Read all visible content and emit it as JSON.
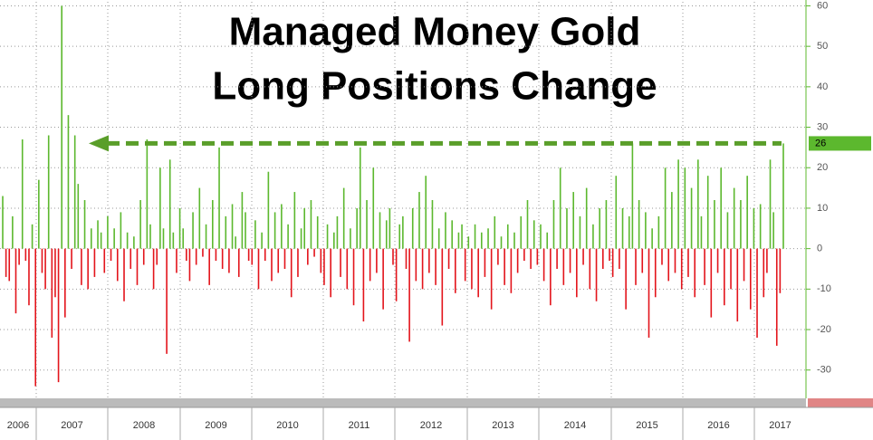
{
  "chart_data": {
    "type": "bar",
    "title_lines": [
      "Managed Money Gold",
      "Long Positions Change"
    ],
    "year_labels": [
      "2006",
      "2007",
      "2008",
      "2009",
      "2010",
      "2011",
      "2012",
      "2013",
      "2014",
      "2015",
      "2016",
      "2017"
    ],
    "values": [
      13,
      -7,
      -8,
      8,
      -16,
      -4,
      27,
      -3,
      -14,
      6,
      -34,
      17,
      -6,
      -10,
      28,
      -22,
      -12,
      -33,
      60,
      -17,
      33,
      -5,
      28,
      16,
      -9,
      12,
      -10,
      5,
      -7,
      7,
      4,
      -6,
      8,
      -3,
      5,
      -8,
      9,
      -13,
      4,
      -5,
      3,
      -9,
      12,
      -4,
      27,
      6,
      -10,
      -4,
      20,
      5,
      -26,
      22,
      4,
      -6,
      10,
      5,
      -3,
      -8,
      9,
      -4,
      15,
      -2,
      6,
      -9,
      12,
      -3,
      25,
      -5,
      8,
      -6,
      11,
      3,
      -7,
      14,
      9,
      -3,
      -4,
      7,
      -10,
      4,
      -3,
      19,
      -8,
      9,
      -6,
      11,
      -5,
      6,
      -12,
      14,
      -7,
      5,
      10,
      -4,
      12,
      -2,
      8,
      -6,
      -9,
      6,
      -12,
      4,
      8,
      -7,
      15,
      -10,
      5,
      -14,
      10,
      25,
      -18,
      12,
      -8,
      20,
      -6,
      9,
      -15,
      7,
      10,
      -4,
      -13,
      6,
      8,
      -5,
      -23,
      10,
      -8,
      14,
      -10,
      18,
      -6,
      12,
      -9,
      5,
      -19,
      9,
      -5,
      7,
      -11,
      4,
      6,
      -8,
      3,
      -10,
      6,
      -12,
      4,
      -7,
      5,
      -15,
      8,
      -4,
      3,
      -9,
      6,
      -11,
      4,
      -6,
      8,
      -3,
      12,
      -5,
      7,
      -4,
      6,
      -8,
      4,
      -14,
      12,
      -5,
      20,
      -9,
      10,
      -6,
      14,
      -12,
      8,
      -4,
      15,
      -10,
      6,
      -13,
      10,
      -5,
      12,
      -3,
      -7,
      18,
      -5,
      10,
      -15,
      8,
      26,
      -9,
      12,
      -6,
      9,
      -22,
      5,
      -12,
      8,
      -4,
      20,
      -8,
      14,
      -6,
      22,
      -10,
      20,
      -7,
      15,
      -12,
      22,
      8,
      -9,
      18,
      -17,
      12,
      -6,
      20,
      -14,
      9,
      -10,
      15,
      -18,
      12,
      -8,
      18,
      -15,
      10,
      -22,
      11,
      -12,
      -6,
      22,
      9,
      -24,
      -11,
      26
    ],
    "colors": {
      "positive": "#5cb82e",
      "negative": "#e3141b",
      "arrow": "#5a9e2a"
    },
    "ylim": [
      -37,
      61
    ],
    "yticks": [
      -30,
      -20,
      -10,
      0,
      10,
      20,
      30,
      40,
      50,
      60
    ],
    "grid": true
  }
}
